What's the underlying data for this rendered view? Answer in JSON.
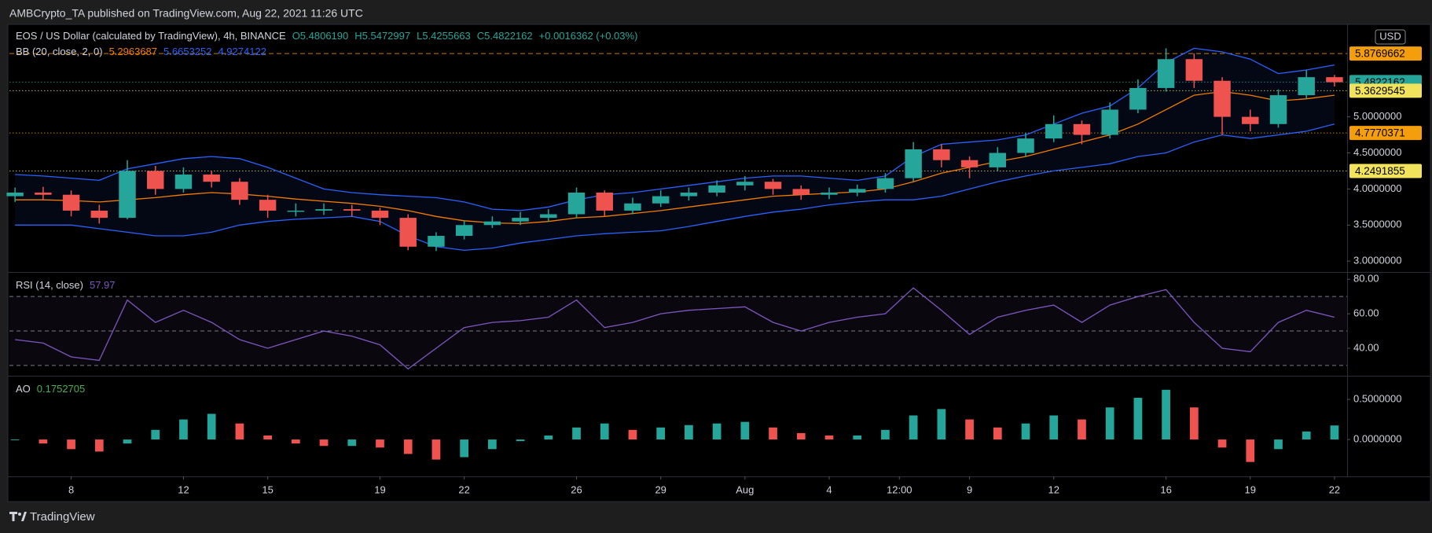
{
  "header": {
    "published": "AMBCrypto_TA published on TradingView.com, Aug 22, 2021 11:26 UTC"
  },
  "footer": {
    "brand": "TradingView"
  },
  "chart_data": [
    {
      "type": "candlestick",
      "legend": {
        "symbol": "EOS / US Dollar (calculated by TradingView), 4h, BINANCE",
        "open": "O5.4806190",
        "high": "H5.5472997",
        "low": "L5.4255663",
        "close": "C5.4822162",
        "change": "+0.0016362 (+0.03%)"
      },
      "indicator": {
        "name": "BB (20, close, 2, 0)",
        "values": [
          "5.2963687",
          "5.6653252",
          "4.9274122"
        ]
      },
      "currency": "USD",
      "up_color": "#26a69a",
      "down_color": "#ef5350",
      "x": [
        5,
        6,
        7,
        8,
        9,
        10,
        11,
        12,
        13,
        14,
        15,
        16,
        17,
        18,
        19,
        20,
        21,
        22,
        23,
        24,
        25,
        26,
        27,
        28,
        29,
        30,
        31,
        32,
        33,
        34,
        35,
        36,
        37,
        38,
        39,
        40,
        41,
        42,
        43,
        44,
        45,
        46,
        47,
        48,
        49,
        50,
        51,
        52
      ],
      "open": [
        3.9,
        3.95,
        3.92,
        3.7,
        3.6,
        4.25,
        4.0,
        4.2,
        4.1,
        3.85,
        3.7,
        3.7,
        3.72,
        3.7,
        3.6,
        3.2,
        3.35,
        3.5,
        3.55,
        3.6,
        3.65,
        3.95,
        3.7,
        3.8,
        3.9,
        3.95,
        4.05,
        4.1,
        4.0,
        3.92,
        3.95,
        4.0,
        4.15,
        4.55,
        4.4,
        4.3,
        4.5,
        4.7,
        4.9,
        4.75,
        5.1,
        5.4,
        5.8,
        5.5,
        5.0,
        4.9,
        5.3,
        5.55
      ],
      "high": [
        4.02,
        4.03,
        3.98,
        3.78,
        4.4,
        4.32,
        4.3,
        4.25,
        4.15,
        3.92,
        3.8,
        3.8,
        3.78,
        3.74,
        3.65,
        3.4,
        3.56,
        3.62,
        3.68,
        3.72,
        4.02,
        3.98,
        3.88,
        3.98,
        4.02,
        4.12,
        4.18,
        4.14,
        4.05,
        4.02,
        4.06,
        4.22,
        4.65,
        4.62,
        4.45,
        4.58,
        4.78,
        5.02,
        4.95,
        5.2,
        5.52,
        5.95,
        5.88,
        5.55,
        5.1,
        5.38,
        5.65,
        5.58
      ],
      "low": [
        3.82,
        3.85,
        3.62,
        3.52,
        3.58,
        3.92,
        3.95,
        4.02,
        3.78,
        3.6,
        3.62,
        3.64,
        3.62,
        3.5,
        3.15,
        3.14,
        3.3,
        3.46,
        3.5,
        3.55,
        3.6,
        3.62,
        3.65,
        3.75,
        3.84,
        3.9,
        3.98,
        3.92,
        3.85,
        3.86,
        3.9,
        3.95,
        4.1,
        4.3,
        4.15,
        4.25,
        4.45,
        4.65,
        4.62,
        4.7,
        5.05,
        5.35,
        5.4,
        4.75,
        4.8,
        4.85,
        5.25,
        5.42
      ],
      "close": [
        3.95,
        3.92,
        3.7,
        3.6,
        4.25,
        4.0,
        4.2,
        4.1,
        3.85,
        3.7,
        3.7,
        3.72,
        3.7,
        3.6,
        3.2,
        3.35,
        3.5,
        3.55,
        3.6,
        3.65,
        3.95,
        3.7,
        3.8,
        3.9,
        3.95,
        4.05,
        4.1,
        4.0,
        3.92,
        3.95,
        4.0,
        4.15,
        4.55,
        4.4,
        4.3,
        4.5,
        4.7,
        4.9,
        4.75,
        5.1,
        5.4,
        5.8,
        5.5,
        5.0,
        4.9,
        5.3,
        5.55,
        5.48
      ],
      "bands": {
        "middle": [
          3.85,
          3.85,
          3.84,
          3.82,
          3.85,
          3.88,
          3.92,
          3.95,
          3.93,
          3.9,
          3.86,
          3.83,
          3.8,
          3.76,
          3.7,
          3.62,
          3.56,
          3.53,
          3.52,
          3.55,
          3.6,
          3.62,
          3.66,
          3.7,
          3.75,
          3.8,
          3.85,
          3.9,
          3.92,
          3.94,
          3.96,
          4.0,
          4.1,
          4.22,
          4.3,
          4.38,
          4.45,
          4.55,
          4.65,
          4.75,
          4.9,
          5.1,
          5.3,
          5.35,
          5.3,
          5.22,
          5.25,
          5.3
        ],
        "upper": [
          4.2,
          4.18,
          4.15,
          4.12,
          4.28,
          4.35,
          4.42,
          4.45,
          4.42,
          4.3,
          4.15,
          4.0,
          3.95,
          3.92,
          3.9,
          3.88,
          3.82,
          3.72,
          3.7,
          3.75,
          3.85,
          3.92,
          3.95,
          4.0,
          4.05,
          4.1,
          4.15,
          4.18,
          4.18,
          4.15,
          4.12,
          4.18,
          4.45,
          4.62,
          4.65,
          4.68,
          4.75,
          4.9,
          5.05,
          5.15,
          5.4,
          5.75,
          5.95,
          5.9,
          5.8,
          5.6,
          5.65,
          5.72
        ],
        "lower": [
          3.5,
          3.5,
          3.5,
          3.45,
          3.4,
          3.35,
          3.35,
          3.4,
          3.5,
          3.55,
          3.58,
          3.6,
          3.62,
          3.55,
          3.35,
          3.2,
          3.15,
          3.18,
          3.25,
          3.3,
          3.35,
          3.38,
          3.4,
          3.42,
          3.48,
          3.55,
          3.62,
          3.68,
          3.72,
          3.78,
          3.82,
          3.85,
          3.85,
          3.9,
          4.0,
          4.1,
          4.18,
          4.25,
          4.3,
          4.35,
          4.45,
          4.5,
          4.65,
          4.75,
          4.7,
          4.75,
          4.8,
          4.9
        ],
        "middle_color": "#f57c00",
        "band_color": "#2962ff"
      },
      "price_lines": [
        {
          "value": 5.8769662,
          "color": "#f59e0b"
        },
        {
          "value": 5.4822162,
          "color": "#26a69a"
        },
        {
          "value": 5.3629545,
          "color": "#f2e35c"
        },
        {
          "value": 4.7770371,
          "color": "#f59e0b"
        },
        {
          "value": 4.2491855,
          "color": "#f2e35c"
        }
      ],
      "ylim": [
        2.86,
        6.26
      ],
      "yticks": [
        {
          "value": 3.0,
          "label": "3.0000000"
        },
        {
          "value": 3.5,
          "label": "3.5000000"
        },
        {
          "value": 4.0,
          "label": "4.0000000"
        },
        {
          "value": 4.5,
          "label": "4.5000000"
        },
        {
          "value": 5.0,
          "label": "5.0000000"
        }
      ],
      "xlim": [
        4.8,
        52.45
      ],
      "xticks": [
        {
          "value": 7,
          "label": "8"
        },
        {
          "value": 11,
          "label": "12"
        },
        {
          "value": 14,
          "label": "15"
        },
        {
          "value": 18,
          "label": "19"
        },
        {
          "value": 21,
          "label": "22"
        },
        {
          "value": 25,
          "label": "26"
        },
        {
          "value": 28,
          "label": "29"
        },
        {
          "value": 31,
          "label": "Aug"
        },
        {
          "value": 34,
          "label": "4"
        },
        {
          "value": 36.5,
          "label": "12:00"
        },
        {
          "value": 39,
          "label": "9"
        },
        {
          "value": 42,
          "label": "12"
        },
        {
          "value": 46,
          "label": "16"
        },
        {
          "value": 49,
          "label": "19"
        },
        {
          "value": 52,
          "label": "22"
        }
      ]
    },
    {
      "type": "line",
      "title": "RSI (14, close)",
      "value_label": "57.97",
      "color": "#7e57c2",
      "values": [
        45,
        43,
        35,
        33,
        68,
        55,
        62,
        55,
        45,
        40,
        45,
        50,
        47,
        42,
        28,
        40,
        52,
        55,
        56,
        58,
        68,
        52,
        55,
        60,
        62,
        63,
        64,
        55,
        50,
        55,
        58,
        60,
        75,
        62,
        48,
        58,
        62,
        65,
        55,
        65,
        70,
        74,
        55,
        40,
        38,
        55,
        62,
        58
      ],
      "levels": [
        30,
        50,
        70
      ],
      "ylim": [
        24.5,
        83.3
      ],
      "yticks": [
        {
          "value": 40,
          "label": "40.00"
        },
        {
          "value": 60,
          "label": "60.00"
        },
        {
          "value": 80,
          "label": "80.00"
        }
      ]
    },
    {
      "type": "histogram",
      "title": "AO",
      "value_label": "0.1752705",
      "up_color": "#26a69a",
      "down_color": "#ef5350",
      "label_color": "#4caf50",
      "values": [
        0.0,
        -0.05,
        -0.12,
        -0.15,
        -0.05,
        0.12,
        0.25,
        0.32,
        0.2,
        0.05,
        -0.05,
        -0.08,
        -0.08,
        -0.1,
        -0.18,
        -0.25,
        -0.22,
        -0.12,
        -0.02,
        0.05,
        0.15,
        0.2,
        0.12,
        0.15,
        0.18,
        0.2,
        0.22,
        0.15,
        0.08,
        0.05,
        0.05,
        0.12,
        0.3,
        0.38,
        0.25,
        0.15,
        0.2,
        0.3,
        0.25,
        0.4,
        0.52,
        0.62,
        0.4,
        -0.1,
        -0.28,
        -0.12,
        0.1,
        0.175
      ],
      "ylim": [
        -0.45,
        0.775
      ],
      "yticks": [
        {
          "value": 0,
          "label": "0.0000000"
        },
        {
          "value": 0.5,
          "label": "0.5000000"
        }
      ]
    }
  ]
}
